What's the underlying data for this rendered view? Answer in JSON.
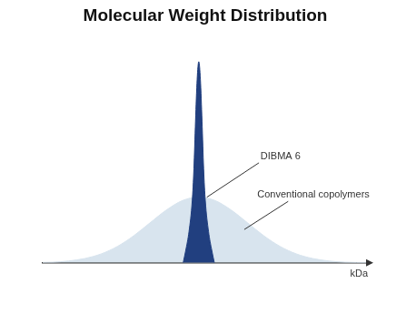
{
  "chart_data": {
    "type": "line",
    "title": "Molecular Weight Distribution",
    "x_label": "kDa",
    "xlim": [
      0,
      100
    ],
    "ylim": [
      0,
      100
    ],
    "tick_labels": false,
    "grid": false,
    "series": [
      {
        "name": "DIBMA 6",
        "color": "#213f7f",
        "x": [
          43.2,
          44,
          45,
          46,
          46.5,
          47,
          47.5,
          48,
          48.5,
          49,
          49.5,
          50,
          51,
          52,
          52.8
        ],
        "values": [
          0,
          6,
          15,
          30,
          45,
          68,
          88,
          96.5,
          88,
          68,
          45,
          30,
          15,
          6,
          0
        ]
      },
      {
        "name": "Conventional copolymers",
        "color": "#d8e4ee",
        "x": [
          0,
          3,
          8,
          13,
          18,
          23,
          28,
          33,
          38,
          43,
          48,
          53,
          58,
          63,
          68,
          73,
          78,
          83,
          88,
          93,
          100
        ],
        "values": [
          0.2,
          0.3,
          0.9,
          2.1,
          4.3,
          7.9,
          13,
          19.2,
          25.3,
          29.9,
          31.6,
          29.9,
          25.3,
          19.2,
          13,
          7.9,
          4.3,
          2.1,
          0.9,
          0.3,
          0.1
        ]
      }
    ]
  }
}
